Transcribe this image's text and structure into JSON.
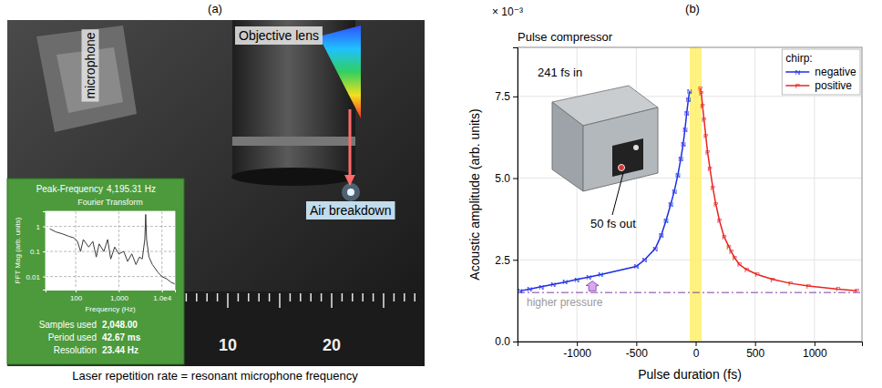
{
  "photo": {
    "panel_label": "(a)",
    "labels": {
      "objective": "Objective lens",
      "microphone": "microphone",
      "breakdown": "Air breakdown"
    },
    "ruler_ticks": [
      10,
      20
    ],
    "caption": "Laser repetition rate = resonant microphone frequency"
  },
  "chart_data": [
    {
      "type": "line",
      "title": "Fourier Transform",
      "peak_label": "Peak-Frequency",
      "peak_value": "4,195.31 Hz",
      "x_label": "Frequency (Hz)",
      "y_label": "FFT Mag (arb. units)",
      "log": true,
      "grid": true,
      "color": "#3a3a3a",
      "xlim": [
        20,
        20000
      ],
      "ylim": [
        0.003,
        4
      ],
      "xticks": [
        100,
        {
          "value": 1000,
          "label": "1,000"
        },
        {
          "value": 10000,
          "label": "1.0e4"
        }
      ],
      "yticks": [
        1,
        0.1,
        0.01
      ],
      "x": [
        25,
        35,
        50,
        70,
        90,
        110,
        130,
        150,
        200,
        250,
        300,
        350,
        450,
        550,
        650,
        800,
        1000,
        1300,
        1600,
        2000,
        2500,
        3000,
        3500,
        4000,
        4195,
        4400,
        5000,
        6000,
        8000,
        10000,
        13000,
        16000,
        20000
      ],
      "values": [
        0.8,
        0.6,
        0.5,
        0.4,
        0.35,
        0.25,
        0.1,
        0.3,
        0.15,
        0.25,
        0.06,
        0.2,
        0.1,
        0.3,
        0.05,
        0.15,
        0.08,
        0.1,
        0.04,
        0.08,
        0.03,
        0.06,
        0.05,
        0.3,
        3,
        0.3,
        0.06,
        0.03,
        0.015,
        0.01,
        0.008,
        0.006,
        0.005
      ],
      "stats": [
        {
          "label": "Samples used",
          "value": "2,048.00"
        },
        {
          "label": "Period used",
          "value": "42.67 ms"
        },
        {
          "label": "Resolution",
          "value": "23.44 Hz"
        }
      ]
    },
    {
      "type": "line",
      "panel_label": "(b)",
      "title": "Pulse compressor",
      "y_multiplier": "× 10⁻³",
      "x_label": "Pulse duration (fs)",
      "y_label": "Acoustic amplitude (arb. units)",
      "xlim": [
        -1500,
        1400
      ],
      "xticks": [
        -1000,
        -500,
        0,
        500,
        1000
      ],
      "ylim": [
        0,
        9
      ],
      "yticks": [
        {
          "value": 0,
          "label": "0.0"
        },
        2.5,
        {
          "value": 5,
          "label": "5.0"
        },
        7.5
      ],
      "grid": true,
      "legend": "top-right",
      "legend_title": "chirp:",
      "series": [
        {
          "name": "negative",
          "color": "#1a2ee6",
          "marker": "N",
          "line_style": "solid",
          "x": [
            -1480,
            -1400,
            -1300,
            -1200,
            -1100,
            -1000,
            -900,
            -800,
            -500,
            -430,
            -340,
            -290,
            -250,
            -210,
            -180,
            -150,
            -125,
            -105,
            -90,
            -75,
            -62,
            -52
          ],
          "values": [
            1.55,
            1.6,
            1.68,
            1.75,
            1.82,
            1.9,
            1.97,
            2.05,
            2.3,
            2.5,
            2.85,
            3.25,
            3.7,
            4.2,
            4.6,
            5.1,
            5.6,
            6.05,
            6.5,
            7.0,
            7.4,
            7.65
          ]
        },
        {
          "name": "positive",
          "color": "#e8251f",
          "marker": "P",
          "line_style": "solid",
          "x": [
            40,
            48,
            58,
            70,
            85,
            100,
            120,
            145,
            170,
            200,
            240,
            280,
            300,
            330,
            370,
            430,
            520,
            650,
            800,
            950,
            1200,
            1360
          ],
          "values": [
            7.75,
            7.6,
            7.2,
            6.8,
            6.3,
            5.8,
            5.3,
            4.7,
            4.2,
            3.7,
            3.2,
            2.9,
            2.75,
            2.55,
            2.35,
            2.2,
            2.05,
            1.9,
            1.78,
            1.7,
            1.6,
            1.55
          ]
        }
      ],
      "annotations": [
        "241 fs in",
        "50 fs out"
      ],
      "reference_line": {
        "value": 1.5,
        "label": "higher pressure",
        "color": "#7b3fa0",
        "line_style": "dash-dot",
        "arrow_at": -870
      },
      "highlight_band": {
        "range": [
          -50,
          50
        ],
        "color": "#fff06a"
      }
    }
  ]
}
